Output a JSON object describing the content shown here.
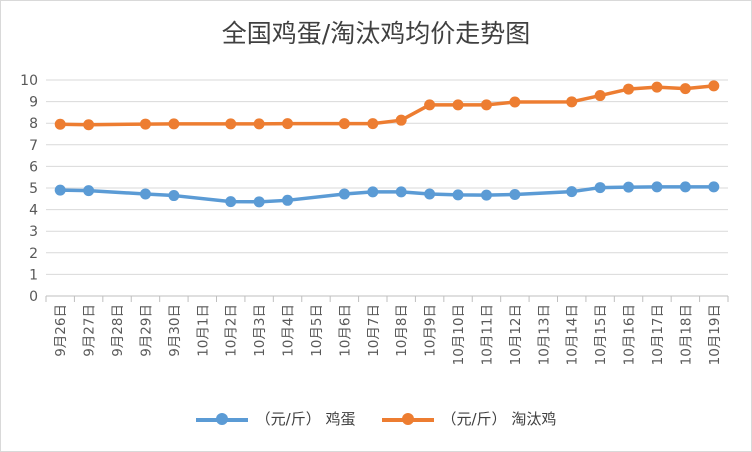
{
  "chart_data": {
    "type": "line",
    "title": "全国鸡蛋/淘汰鸡均价走势图",
    "categories": [
      "9月26日",
      "9月27日",
      "9月28日",
      "9月29日",
      "9月30日",
      "10月1日",
      "10月2日",
      "10月3日",
      "10月4日",
      "10月5日",
      "10月6日",
      "10月7日",
      "10月8日",
      "10月9日",
      "10月10日",
      "10月11日",
      "10月12日",
      "10月13日",
      "10月14日",
      "10月15日",
      "10月16日",
      "10月17日",
      "10月18日",
      "10月19日"
    ],
    "ylim": [
      0,
      10
    ],
    "yticks": [
      "0",
      "1",
      "2",
      "3",
      "4",
      "5",
      "6",
      "7",
      "8",
      "9",
      "10"
    ],
    "grid": true,
    "legend_position": "bottom",
    "series": [
      {
        "name": "（元/斤） 鸡蛋",
        "color": "#5b9bd5",
        "values": [
          4.9,
          4.88,
          null,
          4.72,
          4.65,
          null,
          4.37,
          4.36,
          4.43,
          null,
          4.72,
          4.82,
          4.82,
          4.72,
          4.68,
          4.67,
          4.7,
          null,
          4.83,
          5.02,
          5.04,
          5.05,
          5.05,
          5.05
        ]
      },
      {
        "name": "（元/斤） 淘汰鸡",
        "color": "#ed7d31",
        "values": [
          7.95,
          7.93,
          null,
          7.96,
          7.97,
          null,
          7.97,
          7.97,
          7.98,
          null,
          7.98,
          7.98,
          8.14,
          8.85,
          8.85,
          8.85,
          8.98,
          null,
          8.99,
          9.28,
          9.58,
          9.67,
          9.6,
          9.73
        ]
      }
    ]
  }
}
